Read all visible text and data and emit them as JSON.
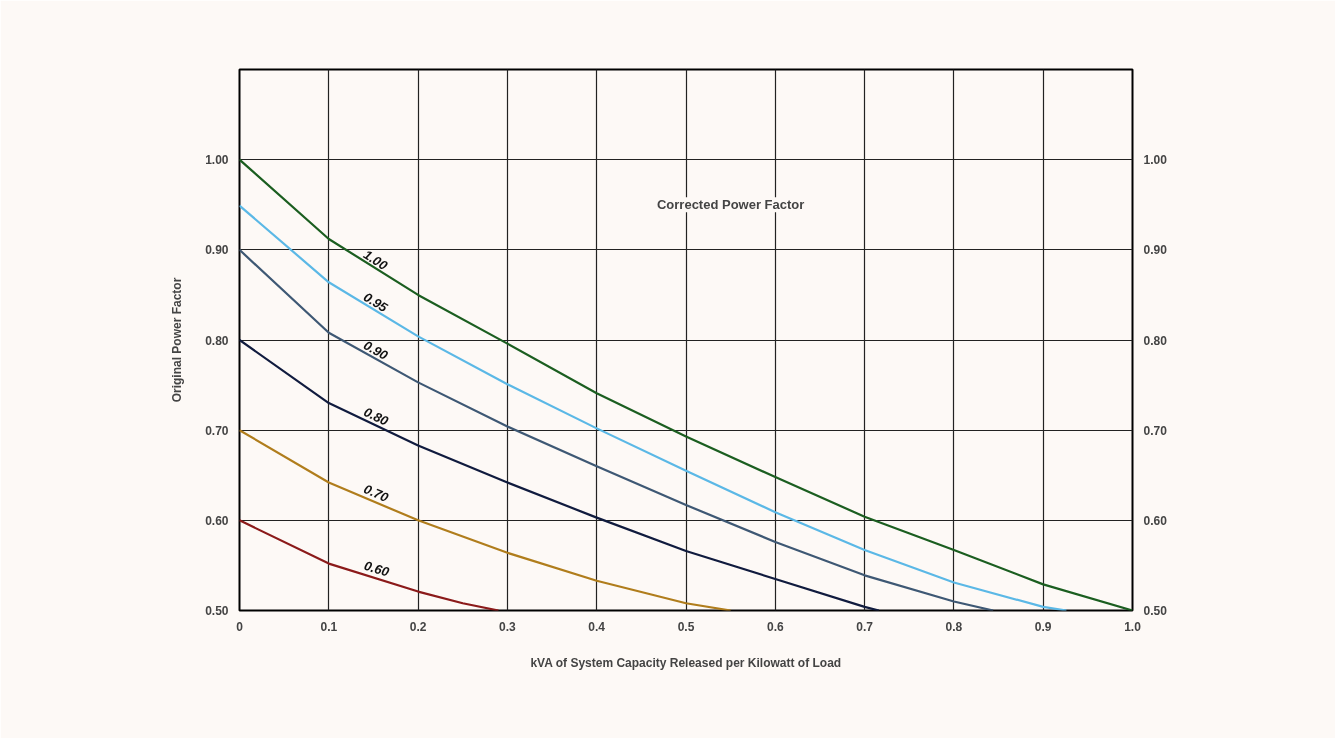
{
  "chart_data": {
    "type": "line",
    "xlabel": "kVA of System Capacity Released per Kilowatt of Load",
    "ylabel": "Original Power Factor",
    "annotations": [
      "Corrected Power Factor"
    ],
    "xlim": [
      0,
      1.0
    ],
    "ylim": [
      0.5,
      1.1
    ],
    "xticks": [
      0,
      0.1,
      0.2,
      0.3,
      0.4,
      0.5,
      0.6,
      0.7,
      0.8,
      0.9,
      {
        "value": 1.0,
        "label": "1.0"
      }
    ],
    "yticks": [
      {
        "value": 0.5,
        "label": "0.50"
      },
      {
        "value": 0.6,
        "label": "0.60"
      },
      {
        "value": 0.7,
        "label": "0.70"
      },
      {
        "value": 0.8,
        "label": "0.80"
      },
      {
        "value": 0.9,
        "label": "0.90"
      },
      {
        "value": 1.0,
        "label": "1.00"
      }
    ],
    "y2lim": [
      0.5,
      1.1
    ],
    "y2ticks": [
      {
        "value": 0.5,
        "label": "0.50"
      },
      {
        "value": 0.6,
        "label": "0.60"
      },
      {
        "value": 0.7,
        "label": "0.70"
      },
      {
        "value": 0.8,
        "label": "0.80"
      },
      {
        "value": 0.9,
        "label": "0.90"
      },
      {
        "value": 1.0,
        "label": "1.00"
      }
    ],
    "grid": true,
    "legend": false,
    "marker": "none",
    "line_style": "solid",
    "series": [
      {
        "name": "1.00",
        "color": "#1b5e20",
        "x": [
          0,
          0.1,
          0.2,
          0.3,
          0.4,
          0.5,
          0.6,
          0.7,
          0.8,
          0.9,
          1.0
        ],
        "values": [
          1.0,
          0.912,
          0.85,
          0.796,
          0.741,
          0.693,
          0.648,
          0.604,
          0.567,
          0.529,
          0.5
        ]
      },
      {
        "name": "0.95",
        "color": "#5bb8e6",
        "x": [
          0,
          0.1,
          0.2,
          0.3,
          0.4,
          0.5,
          0.6,
          0.7,
          0.8,
          0.9,
          0.926
        ],
        "values": [
          0.949,
          0.864,
          0.804,
          0.751,
          0.702,
          0.655,
          0.609,
          0.567,
          0.531,
          0.504,
          0.5
        ]
      },
      {
        "name": "0.90",
        "color": "#3e5874",
        "x": [
          0,
          0.1,
          0.2,
          0.3,
          0.4,
          0.5,
          0.6,
          0.7,
          0.8,
          0.844
        ],
        "values": [
          0.9,
          0.808,
          0.753,
          0.704,
          0.66,
          0.617,
          0.576,
          0.539,
          0.51,
          0.5
        ]
      },
      {
        "name": "0.80",
        "color": "#101b3e",
        "x": [
          0,
          0.1,
          0.2,
          0.3,
          0.4,
          0.5,
          0.6,
          0.7,
          0.716
        ],
        "values": [
          0.8,
          0.73,
          0.683,
          0.642,
          0.603,
          0.566,
          0.535,
          0.504,
          0.5
        ]
      },
      {
        "name": "0.70",
        "color": "#b07d1c",
        "x": [
          0,
          0.1,
          0.2,
          0.3,
          0.4,
          0.5,
          0.55
        ],
        "values": [
          0.7,
          0.642,
          0.6,
          0.564,
          0.533,
          0.508,
          0.5
        ]
      },
      {
        "name": "0.60",
        "color": "#8b1a1a",
        "x": [
          0,
          0.1,
          0.2,
          0.25,
          0.29
        ],
        "values": [
          0.6,
          0.552,
          0.521,
          0.508,
          0.5
        ]
      }
    ]
  }
}
